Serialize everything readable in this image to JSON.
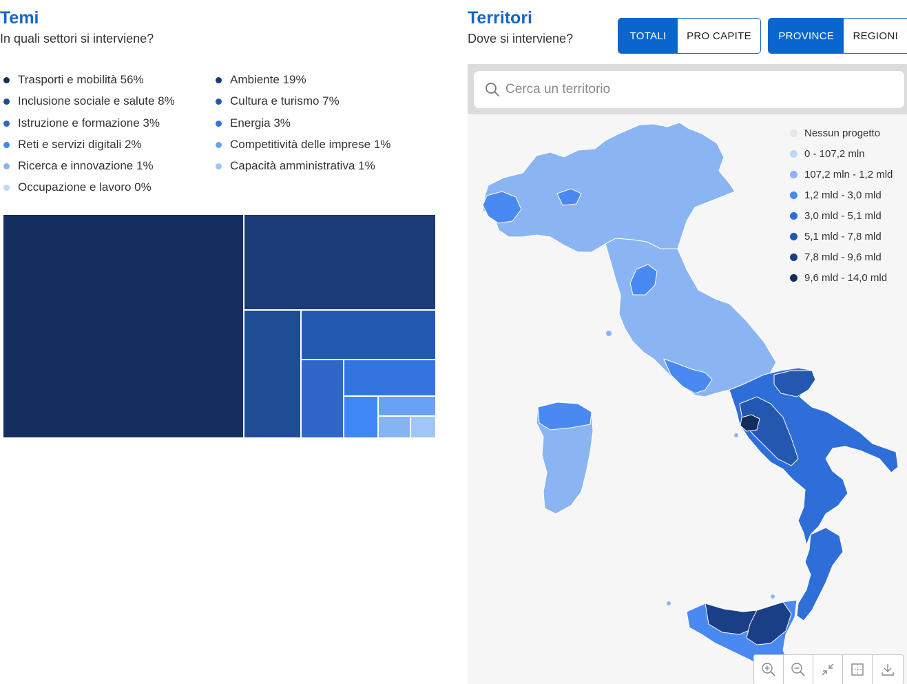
{
  "temi": {
    "title": "Temi",
    "subtitle": "In quali settori si interviene?",
    "legend": [
      {
        "label": "Trasporti e mobilità 56%",
        "color": "#132e5f"
      },
      {
        "label": "Ambiente 19%",
        "color": "#1a3a78"
      },
      {
        "label": "Inclusione sociale e salute 8%",
        "color": "#1e4c95"
      },
      {
        "label": "Cultura e turismo 7%",
        "color": "#2459b0"
      },
      {
        "label": "Istruzione e formazione 3%",
        "color": "#2f66c8"
      },
      {
        "label": "Energia 3%",
        "color": "#3474e0"
      },
      {
        "label": "Reti e servizi digitali 2%",
        "color": "#3f86f6"
      },
      {
        "label": "Competitività delle imprese 1%",
        "color": "#69a1f4"
      },
      {
        "label": "Ricerca e innovazione 1%",
        "color": "#87b4f3"
      },
      {
        "label": "Capacità amministrativa 1%",
        "color": "#9fc6f6"
      },
      {
        "label": "Occupazione e lavoro 0%",
        "color": "#bcd9f9"
      }
    ]
  },
  "territori": {
    "title": "Territori",
    "subtitle": "Dove si interviene?",
    "toggle_measure": [
      {
        "label": "TOTALI",
        "active": true
      },
      {
        "label": "PRO CAPITE",
        "active": false
      }
    ],
    "toggle_level": [
      {
        "label": "PROVINCE",
        "active": true
      },
      {
        "label": "REGIONI",
        "active": false
      }
    ],
    "search_placeholder": "Cerca un territorio",
    "map_legend": [
      {
        "label": "Nessun progetto",
        "color": "#e6e6e6"
      },
      {
        "label": "0 - 107,2 mln",
        "color": "#bcd8f8"
      },
      {
        "label": "107,2 mln - 1,2 mld",
        "color": "#8ab5f2"
      },
      {
        "label": "1,2 mld - 3,0 mld",
        "color": "#4a88f2"
      },
      {
        "label": "3,0 mld - 5,1 mld",
        "color": "#2e6ed8"
      },
      {
        "label": "5,1 mld - 7,8 mld",
        "color": "#2458b0"
      },
      {
        "label": "7,8 mld - 9,6 mld",
        "color": "#1a3f86"
      },
      {
        "label": "9,6 mld - 14,0 mld",
        "color": "#122c5c"
      }
    ],
    "map_tools": [
      "zoom-in-icon",
      "zoom-out-icon",
      "reset-zoom-icon",
      "fit-map-icon",
      "download-icon"
    ]
  }
}
